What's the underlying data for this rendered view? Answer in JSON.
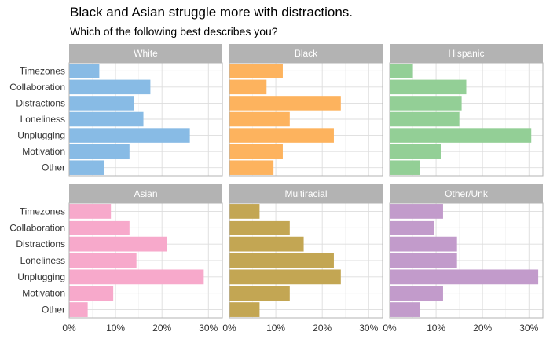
{
  "chart_data": {
    "type": "bar",
    "orientation": "horizontal",
    "title": "Black and Asian struggle more with distractions.",
    "subtitle": "Which of the following best describes you?",
    "xlabel": "",
    "ylabel": "",
    "categories": [
      "Timezones",
      "Collaboration",
      "Distractions",
      "Loneliness",
      "Unplugging",
      "Motivation",
      "Other"
    ],
    "xlim": [
      0,
      33
    ],
    "x_ticks": [
      0,
      10,
      20,
      30
    ],
    "x_tick_labels": [
      "0%",
      "10%",
      "20%",
      "30%"
    ],
    "grid": true,
    "panels": [
      {
        "name": "White",
        "color": "#88BBE5",
        "values": [
          6.5,
          17.5,
          14,
          16,
          26,
          13,
          7.5
        ]
      },
      {
        "name": "Black",
        "color": "#FDB35E",
        "values": [
          11.5,
          8,
          24,
          13,
          22.5,
          11.5,
          9.5
        ]
      },
      {
        "name": "Hispanic",
        "color": "#93CF96",
        "values": [
          5,
          16.5,
          15.5,
          15,
          30.5,
          11,
          6.5
        ]
      },
      {
        "name": "Asian",
        "color": "#F7A9CB",
        "values": [
          9,
          13,
          21,
          14.5,
          29,
          9.5,
          4
        ]
      },
      {
        "name": "Multiracial",
        "color": "#C3A653",
        "values": [
          6.5,
          13,
          16,
          22.5,
          24,
          13,
          6.5
        ]
      },
      {
        "name": "Other/Unk",
        "color": "#C29BCB",
        "values": [
          11.5,
          9.5,
          14.5,
          14.5,
          32,
          11.5,
          6.5
        ]
      }
    ]
  }
}
